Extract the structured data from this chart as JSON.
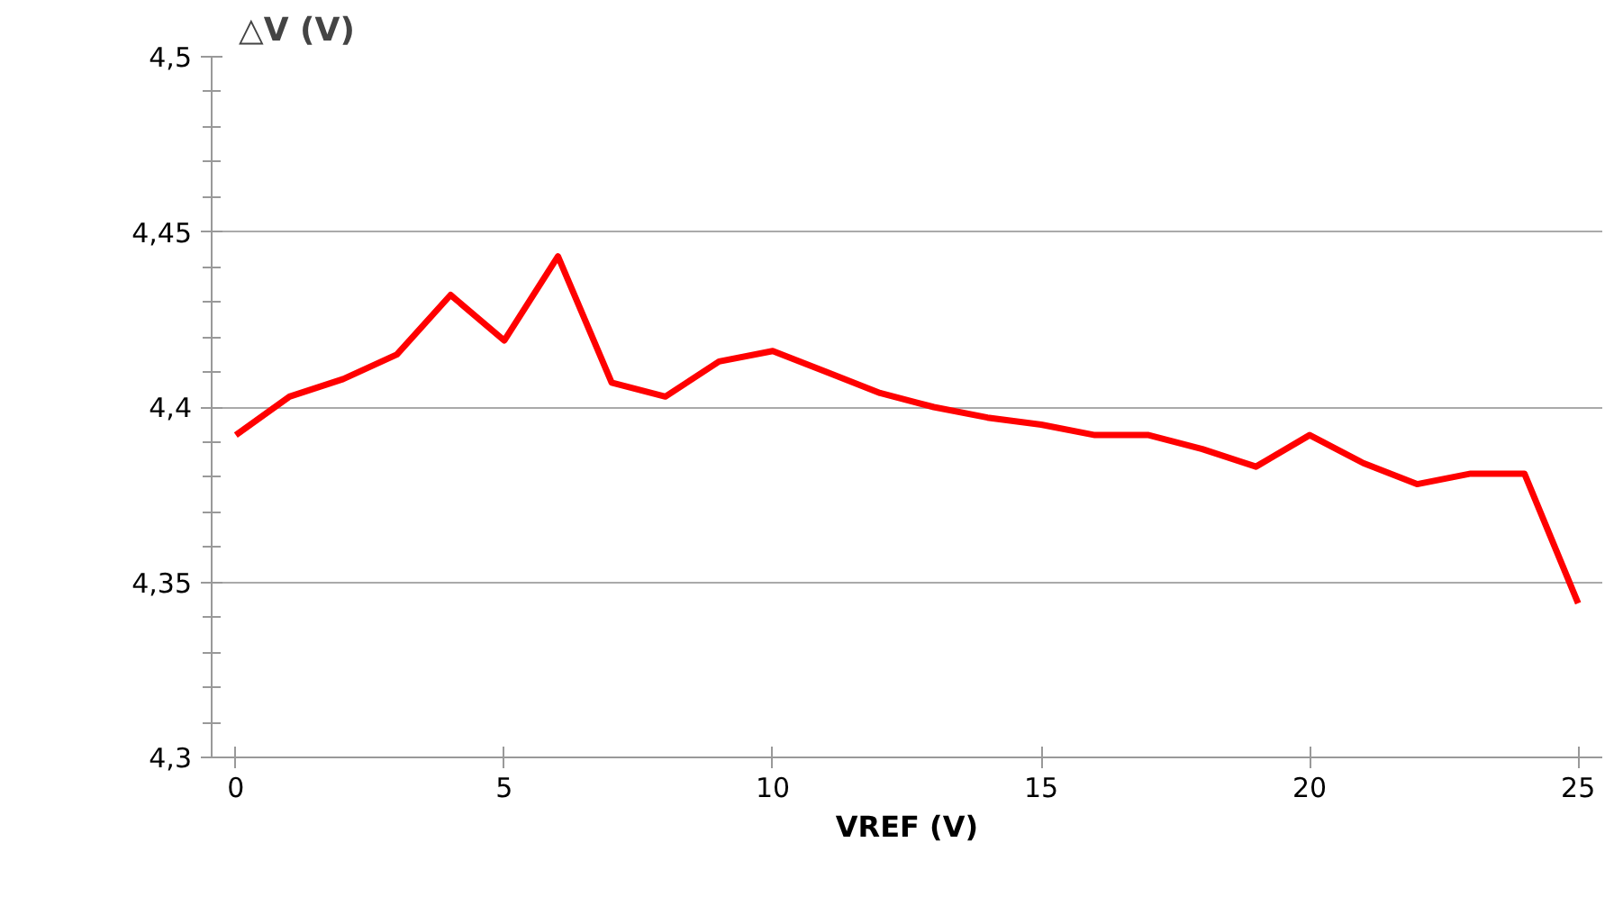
{
  "chart_data": {
    "type": "line",
    "ylabel": "△V (V)",
    "xlabel": "VREF (V)",
    "x": [
      0,
      1,
      2,
      3,
      4,
      5,
      6,
      7,
      8,
      9,
      10,
      11,
      12,
      13,
      14,
      15,
      16,
      17,
      18,
      19,
      20,
      21,
      22,
      23,
      24,
      25
    ],
    "series": [
      {
        "color": "#ff0000",
        "values": [
          4.392,
          4.403,
          4.408,
          4.415,
          4.432,
          4.419,
          4.443,
          4.407,
          4.403,
          4.413,
          4.416,
          4.41,
          4.404,
          4.4,
          4.397,
          4.395,
          4.392,
          4.392,
          4.388,
          4.383,
          4.392,
          4.384,
          4.378,
          4.381,
          4.381,
          4.344
        ]
      }
    ],
    "xlim": [
      -0.45,
      25.45
    ],
    "xticks": [
      0,
      5,
      10,
      15,
      20,
      25
    ],
    "ylim": [
      4.3,
      4.5
    ],
    "yticks": [
      {
        "value": 4.3,
        "label": "4,3"
      },
      {
        "value": 4.31,
        "label": null
      },
      {
        "value": 4.32,
        "label": null
      },
      {
        "value": 4.33,
        "label": null
      },
      {
        "value": 4.34,
        "label": null
      },
      {
        "value": 4.35,
        "label": "4,35"
      },
      {
        "value": 4.36,
        "label": null
      },
      {
        "value": 4.37,
        "label": null
      },
      {
        "value": 4.38,
        "label": null
      },
      {
        "value": 4.39,
        "label": null
      },
      {
        "value": 4.4,
        "label": "4,4"
      },
      {
        "value": 4.41,
        "label": null
      },
      {
        "value": 4.42,
        "label": null
      },
      {
        "value": 4.43,
        "label": null
      },
      {
        "value": 4.44,
        "label": null
      },
      {
        "value": 4.45,
        "label": "4,45"
      },
      {
        "value": 4.46,
        "label": null
      },
      {
        "value": 4.47,
        "label": null
      },
      {
        "value": 4.48,
        "label": null
      },
      {
        "value": 4.49,
        "label": null
      },
      {
        "value": 4.5,
        "label": "4,5"
      }
    ],
    "grid": "y",
    "marker": "none",
    "line_style": "solid"
  }
}
